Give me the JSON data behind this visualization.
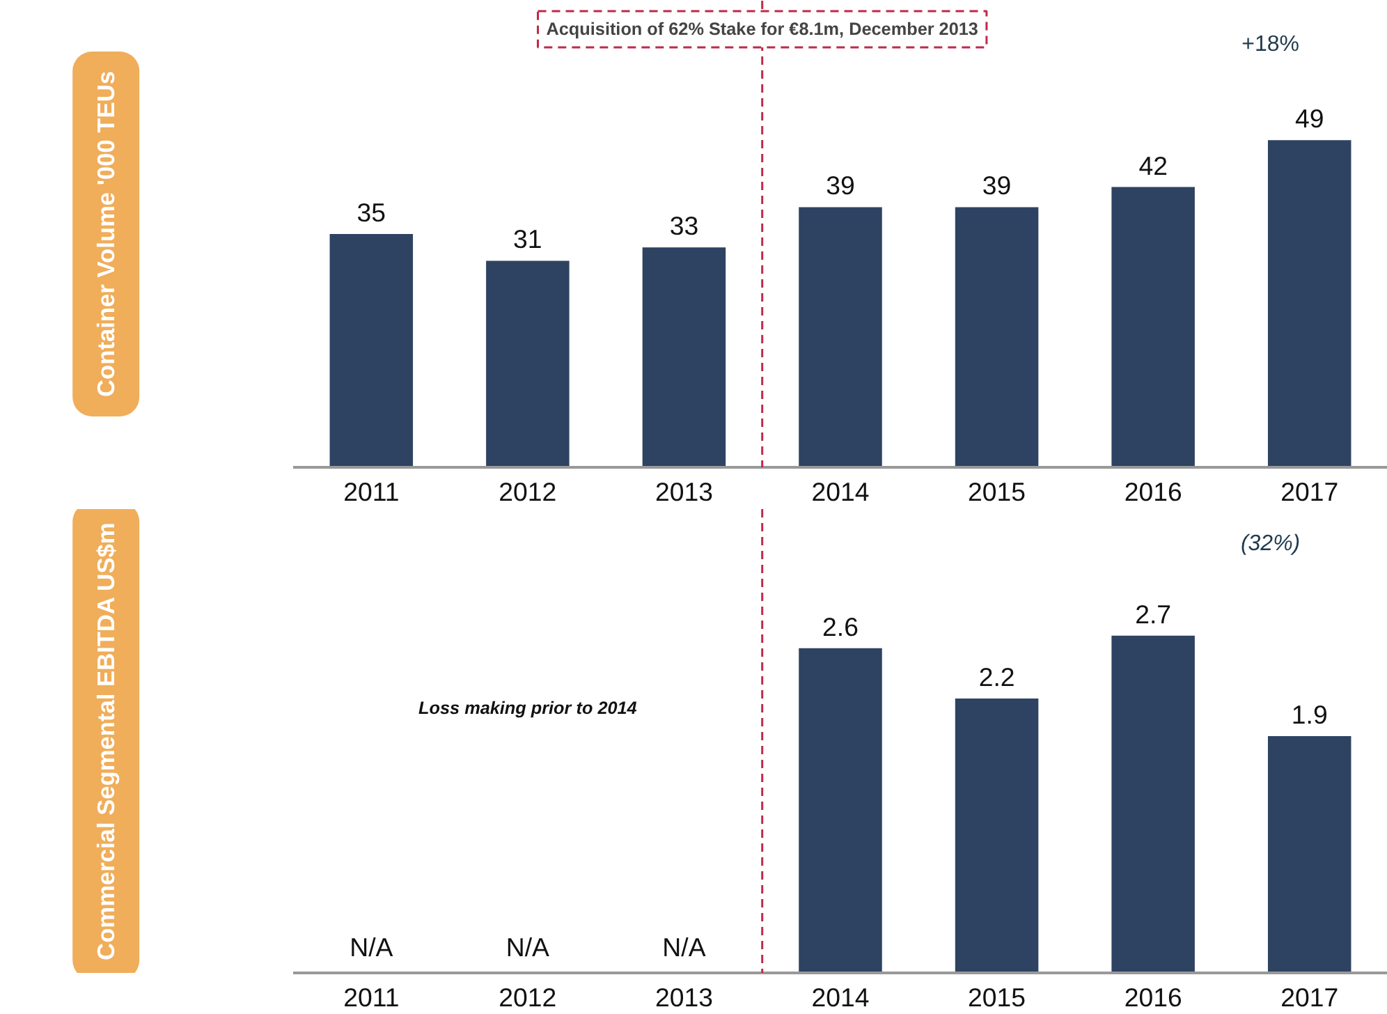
{
  "chart_data": [
    {
      "type": "bar",
      "categories": [
        "2011",
        "2012",
        "2013",
        "2014",
        "2015",
        "2016",
        "2017"
      ],
      "values": [
        35,
        31,
        33,
        39,
        39,
        42,
        49
      ],
      "color": "#2e4262",
      "ylabel": "Container Volume '000 TEUs",
      "data_labels": true,
      "grid": false,
      "annotations": [
        "+18%"
      ],
      "ref_lines": [
        {
          "axis": "x",
          "value": "2013",
          "label": "Acquisition of 62% Stake for €8.1m, December 2013",
          "color": "#c0294a",
          "line_style": "dashed"
        }
      ]
    },
    {
      "type": "bar",
      "categories": [
        "2011",
        "2012",
        "2013",
        "2014",
        "2015",
        "2016",
        "2017"
      ],
      "values": [
        null,
        null,
        null,
        2.6,
        2.2,
        2.7,
        1.9
      ],
      "value_labels": [
        "N/A",
        "N/A",
        "N/A",
        "2.6",
        "2.2",
        "2.7",
        "1.9"
      ],
      "color": "#2e4262",
      "ylabel": "Commercial Segmental EBITDA US$m",
      "grid": false,
      "annotations": [
        "(32%)",
        "Loss making prior to 2014"
      ],
      "ref_lines": [
        {
          "axis": "x",
          "value": "2013",
          "color": "#c0294a",
          "line_style": "dashed"
        }
      ]
    }
  ]
}
